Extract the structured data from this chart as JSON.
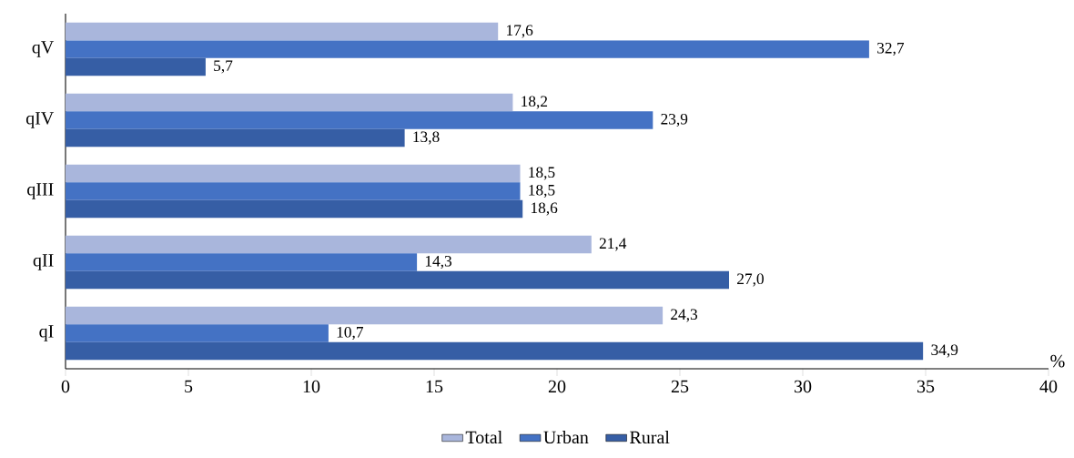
{
  "chart_data": {
    "type": "bar",
    "orientation": "horizontal",
    "categories": [
      "qV",
      "qIV",
      "qIII",
      "qII",
      "qI"
    ],
    "xlabel": "%",
    "xlim": [
      0,
      40
    ],
    "xticks": [
      0,
      5,
      10,
      15,
      20,
      25,
      30,
      35,
      40
    ],
    "legend": "bottom",
    "series": [
      {
        "name": "Total",
        "color": "#a9b6dc",
        "values": [
          17.6,
          18.2,
          18.5,
          21.4,
          24.3
        ],
        "value_labels": [
          "17,6",
          "18,2",
          "18,5",
          "21,4",
          "24,3"
        ]
      },
      {
        "name": "Urban",
        "color": "#4472c4",
        "values": [
          32.7,
          23.9,
          18.5,
          14.3,
          10.7
        ],
        "value_labels": [
          "32,7",
          "23,9",
          "18,5",
          "14,3",
          "10,7"
        ]
      },
      {
        "name": "Rural",
        "color": "#365ea5",
        "values": [
          5.7,
          13.8,
          18.6,
          27.0,
          34.9
        ],
        "value_labels": [
          "5,7",
          "13,8",
          "18,6",
          "27,0",
          "34,9"
        ]
      }
    ]
  }
}
